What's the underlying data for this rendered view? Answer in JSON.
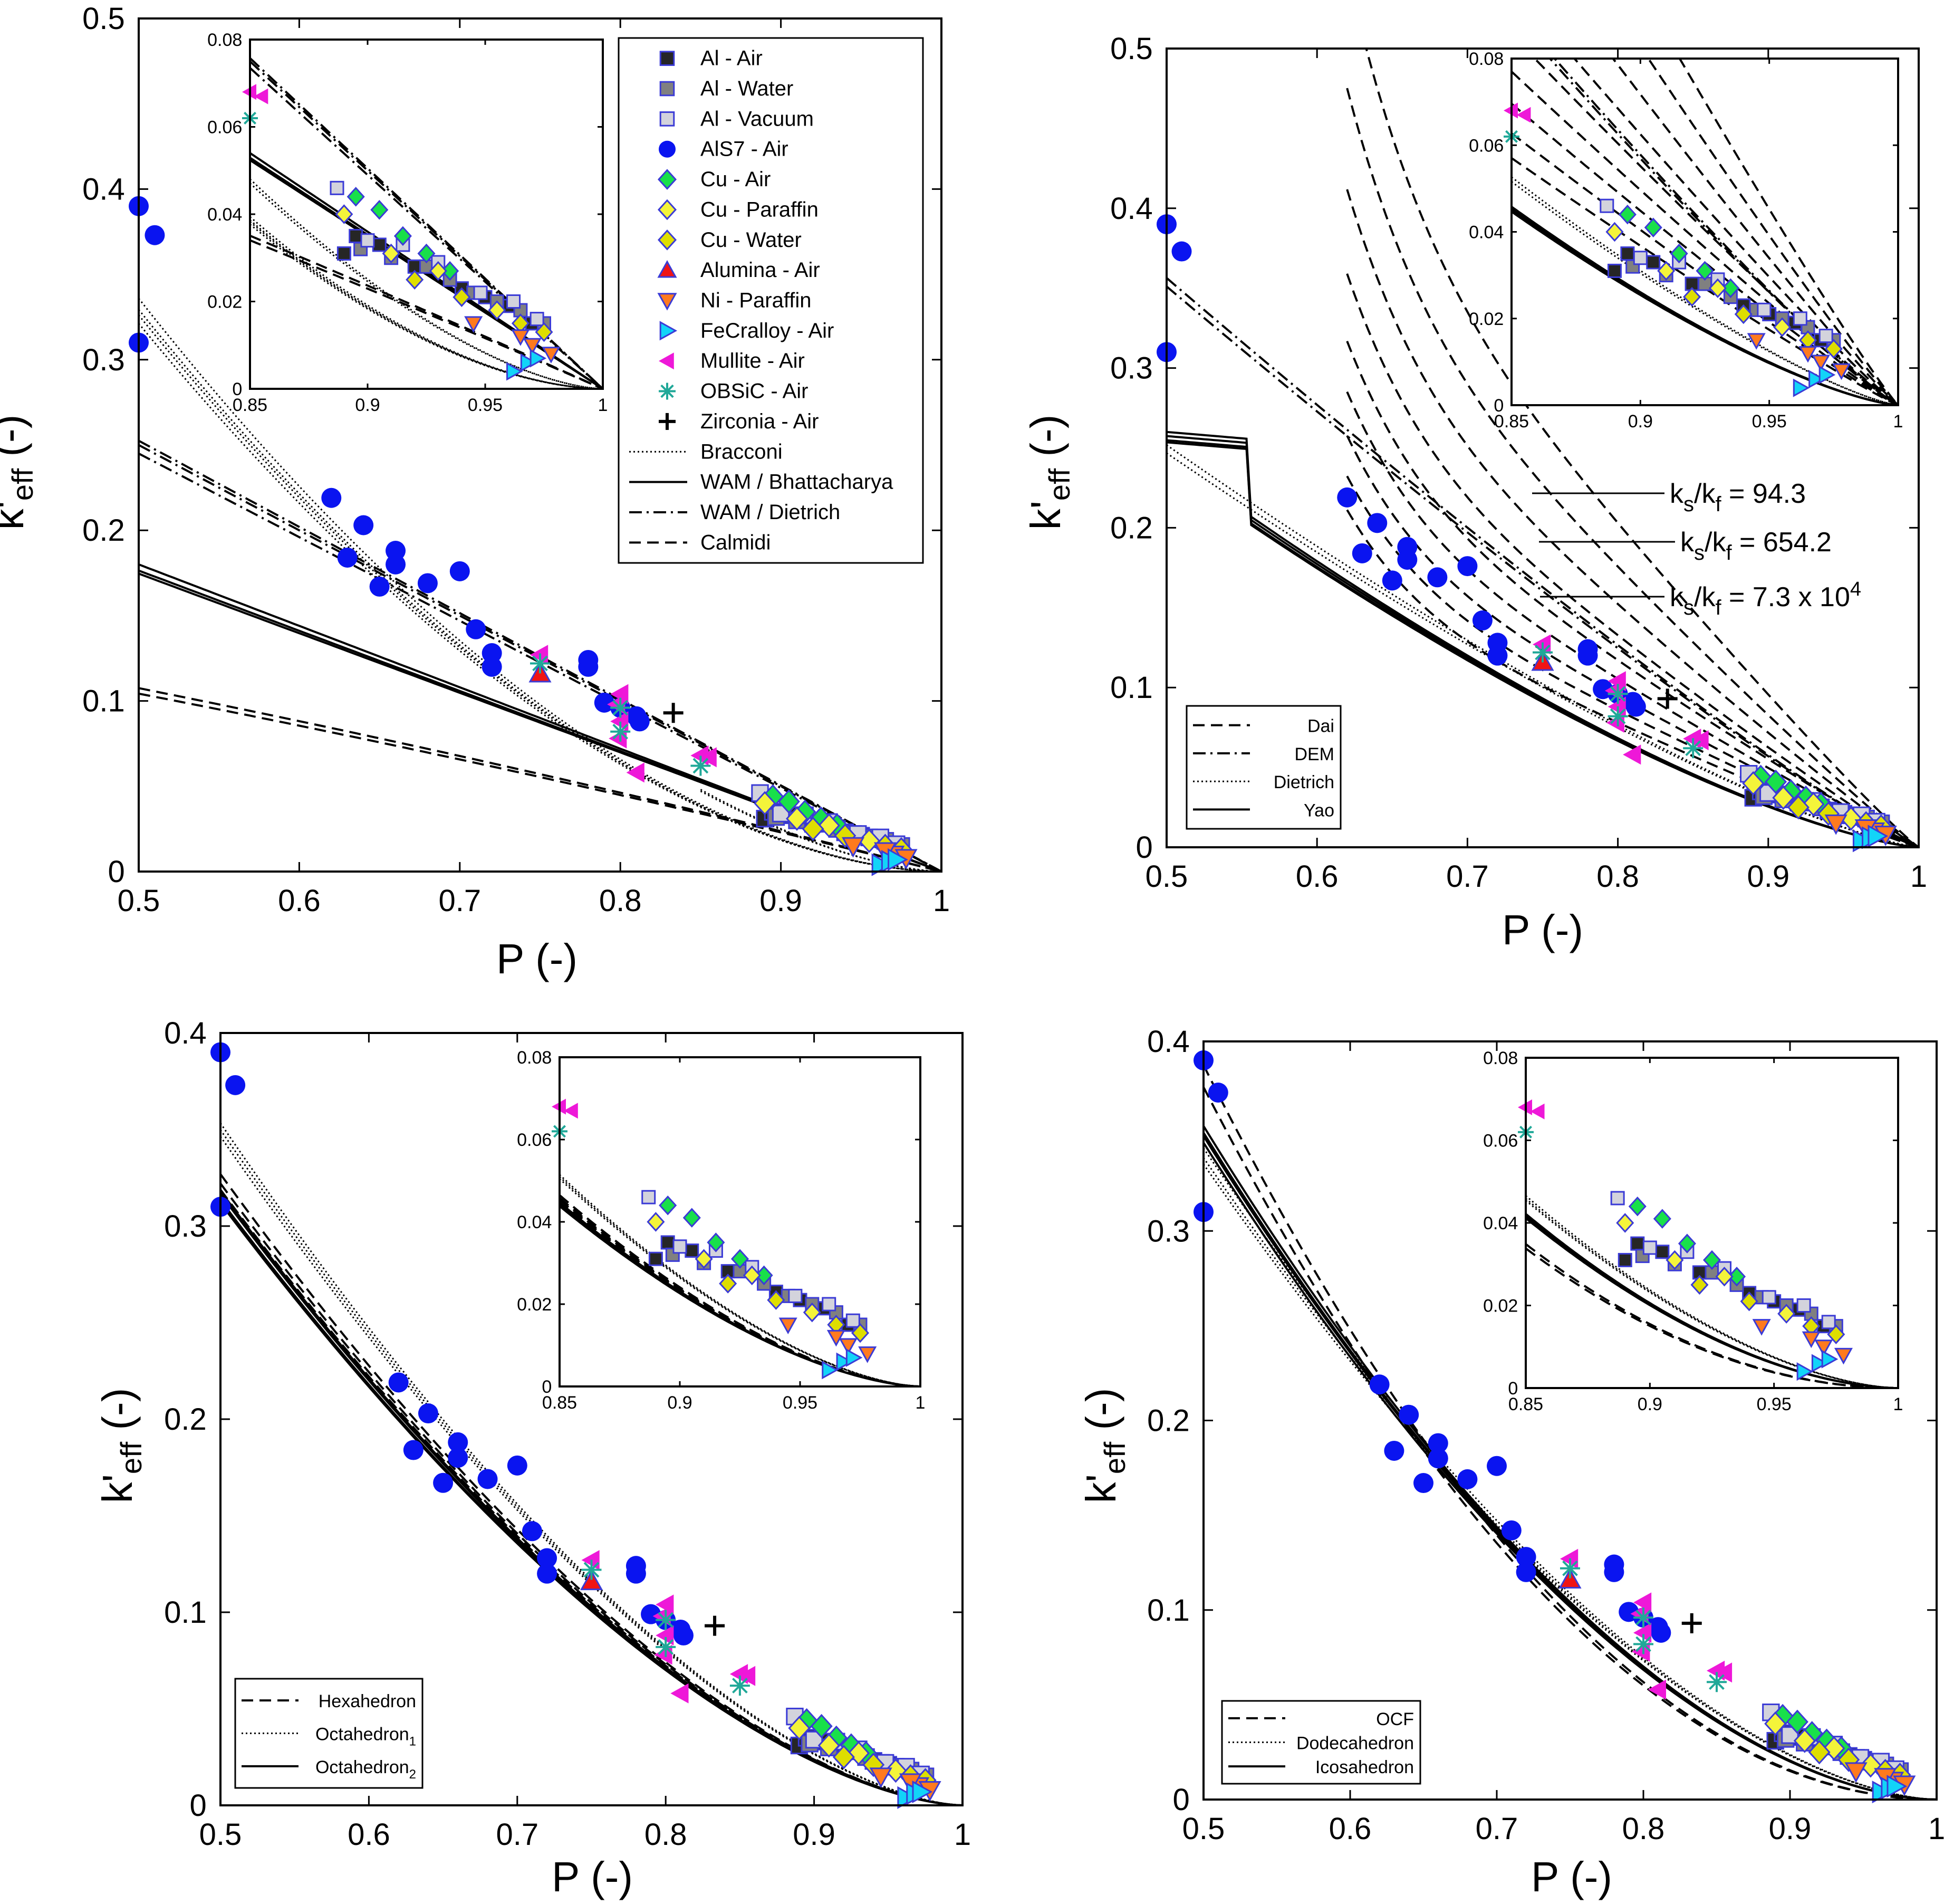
{
  "figure": {
    "x_label": "P (-)",
    "y_label_main": "k'",
    "y_label_sub": "eff",
    "y_label_unit": "(-)"
  },
  "colors": {
    "al_air": "#262626",
    "al_water": "#808080",
    "al_vacuum": "#d3d3dc",
    "als7": "#0a14f0",
    "cu_air": "#18e04a",
    "cu_paraffin": "#f4f43a",
    "cu_water": "#dede00",
    "alumina": "#f01414",
    "ni_paraffin": "#ff7a1e",
    "fecralloy": "#12d4f8",
    "mullite": "#ee18d8",
    "obsic": "#20a898",
    "zirconia": "#000000",
    "edge": "#3b3bd6"
  },
  "chart_data": [
    {
      "id": "A",
      "type": "scatter",
      "xlim": [
        0.5,
        1
      ],
      "ylim": [
        0,
        0.5
      ],
      "xticks": [
        "0.5",
        "0.6",
        "0.7",
        "0.8",
        "0.9",
        "1"
      ],
      "yticks": [
        "0",
        "0.1",
        "0.2",
        "0.3",
        "0.4",
        "0.5"
      ],
      "inset": {
        "xlim": [
          0.85,
          1
        ],
        "ylim": [
          0,
          0.08
        ],
        "xticks": [
          "0.85",
          "0.9",
          "0.95",
          "1"
        ],
        "yticks": [
          "0",
          "0.02",
          "0.04",
          "0.06",
          "0.08"
        ]
      },
      "legend": [
        {
          "label": "Al - Air",
          "marker": "square",
          "color": "al_air"
        },
        {
          "label": "Al - Water",
          "marker": "square",
          "color": "al_water"
        },
        {
          "label": "Al - Vacuum",
          "marker": "square",
          "color": "al_vacuum"
        },
        {
          "label": "AlS7 - Air",
          "marker": "circle",
          "color": "als7"
        },
        {
          "label": "Cu - Air",
          "marker": "diamond",
          "color": "cu_air"
        },
        {
          "label": "Cu - Paraffin",
          "marker": "diamond",
          "color": "cu_paraffin"
        },
        {
          "label": "Cu - Water",
          "marker": "diamond",
          "color": "cu_water"
        },
        {
          "label": "Alumina - Air",
          "marker": "tri-up",
          "color": "alumina"
        },
        {
          "label": "Ni - Paraffin",
          "marker": "tri-down",
          "color": "ni_paraffin"
        },
        {
          "label": "FeCralloy - Air",
          "marker": "tri-right",
          "color": "fecralloy"
        },
        {
          "label": "Mullite - Air",
          "marker": "tri-left",
          "color": "mullite"
        },
        {
          "label": "OBSiC - Air",
          "marker": "star",
          "color": "obsic"
        },
        {
          "label": "Zirconia - Air",
          "marker": "plus",
          "color": "zirconia"
        },
        {
          "label": "Bracconi",
          "line": "dotted"
        },
        {
          "label": "WAM / Bhattacharya",
          "line": "solid"
        },
        {
          "label": "WAM / Dietrich",
          "line": "dashdot"
        },
        {
          "label": "Calmidi",
          "line": "dashed"
        }
      ]
    },
    {
      "id": "B",
      "type": "scatter",
      "xlim": [
        0.5,
        1
      ],
      "ylim": [
        0,
        0.5
      ],
      "xticks": [
        "0.5",
        "0.6",
        "0.7",
        "0.8",
        "0.9",
        "1"
      ],
      "yticks": [
        "0",
        "0.1",
        "0.2",
        "0.3",
        "0.4",
        "0.5"
      ],
      "inset": {
        "xlim": [
          0.85,
          1
        ],
        "ylim": [
          0,
          0.08
        ],
        "xticks": [
          "0.85",
          "0.9",
          "0.95",
          "1"
        ],
        "yticks": [
          "0",
          "0.02",
          "0.04",
          "0.06",
          "0.08"
        ]
      },
      "legend": [
        {
          "label": "Dai",
          "line": "dashed"
        },
        {
          "label": "DEM",
          "line": "dashdot"
        },
        {
          "label": "Dietrich",
          "line": "dotted"
        },
        {
          "label": "Yao",
          "line": "solid"
        }
      ],
      "annotations": [
        {
          "text": "k",
          "sub1": "s",
          "mid": "/k",
          "sub2": "f",
          "rest": " = 94.3"
        },
        {
          "text": "k",
          "sub1": "s",
          "mid": "/k",
          "sub2": "f",
          "rest": " = 654.2"
        },
        {
          "text": "k",
          "sub1": "s",
          "mid": "/k",
          "sub2": "f",
          "rest": " = 7.3 x 10",
          "sup": "4"
        }
      ]
    },
    {
      "id": "C",
      "type": "scatter",
      "xlim": [
        0.5,
        1
      ],
      "ylim": [
        0,
        0.4
      ],
      "xticks": [
        "0.5",
        "0.6",
        "0.7",
        "0.8",
        "0.9",
        "1"
      ],
      "yticks": [
        "0",
        "0.1",
        "0.2",
        "0.3",
        "0.4"
      ],
      "inset": {
        "xlim": [
          0.85,
          1
        ],
        "ylim": [
          0,
          0.08
        ],
        "xticks": [
          "0.85",
          "0.9",
          "0.95",
          "1"
        ],
        "yticks": [
          "0",
          "0.02",
          "0.04",
          "0.06",
          "0.08"
        ]
      },
      "legend": [
        {
          "label": "Hexahedron",
          "line": "dashed"
        },
        {
          "label": "Octahedron",
          "sub": "1",
          "line": "dotted"
        },
        {
          "label": "Octahedron",
          "sub": "2",
          "line": "solid"
        }
      ]
    },
    {
      "id": "D",
      "type": "scatter",
      "xlim": [
        0.5,
        1
      ],
      "ylim": [
        0,
        0.4
      ],
      "xticks": [
        "0.5",
        "0.6",
        "0.7",
        "0.8",
        "0.9",
        "1"
      ],
      "yticks": [
        "0",
        "0.1",
        "0.2",
        "0.3",
        "0.4"
      ],
      "inset": {
        "xlim": [
          0.85,
          1
        ],
        "ylim": [
          0,
          0.08
        ],
        "xticks": [
          "0.85",
          "0.9",
          "0.95",
          "1"
        ],
        "yticks": [
          "0",
          "0.02",
          "0.04",
          "0.06",
          "0.08"
        ]
      },
      "legend": [
        {
          "label": "OCF",
          "line": "dashed"
        },
        {
          "label": "Dodecahedron",
          "line": "dotted"
        },
        {
          "label": "Icosahedron",
          "line": "solid"
        }
      ]
    }
  ],
  "datasets": [
    {
      "key": "al_air",
      "marker": "square",
      "points": [
        [
          0.89,
          0.031
        ],
        [
          0.905,
          0.033
        ],
        [
          0.92,
          0.028
        ],
        [
          0.94,
          0.023
        ],
        [
          0.95,
          0.021
        ],
        [
          0.96,
          0.019
        ],
        [
          0.97,
          0.015
        ],
        [
          0.895,
          0.035
        ]
      ]
    },
    {
      "key": "al_water",
      "marker": "square",
      "points": [
        [
          0.897,
          0.032
        ],
        [
          0.91,
          0.03
        ],
        [
          0.925,
          0.028
        ],
        [
          0.935,
          0.025
        ],
        [
          0.945,
          0.022
        ],
        [
          0.955,
          0.02
        ],
        [
          0.965,
          0.018
        ],
        [
          0.975,
          0.015
        ]
      ]
    },
    {
      "key": "al_vacuum",
      "marker": "square",
      "points": [
        [
          0.887,
          0.046
        ],
        [
          0.9,
          0.034
        ],
        [
          0.915,
          0.033
        ],
        [
          0.93,
          0.029
        ],
        [
          0.948,
          0.022
        ],
        [
          0.962,
          0.02
        ],
        [
          0.972,
          0.016
        ]
      ]
    },
    {
      "key": "als7",
      "marker": "circle",
      "points": [
        [
          0.5,
          0.39
        ],
        [
          0.51,
          0.373
        ],
        [
          0.5,
          0.31
        ],
        [
          0.62,
          0.219
        ],
        [
          0.64,
          0.203
        ],
        [
          0.66,
          0.188
        ],
        [
          0.66,
          0.18
        ],
        [
          0.63,
          0.184
        ],
        [
          0.65,
          0.167
        ],
        [
          0.68,
          0.169
        ],
        [
          0.7,
          0.176
        ],
        [
          0.71,
          0.142
        ],
        [
          0.72,
          0.128
        ],
        [
          0.72,
          0.12
        ],
        [
          0.78,
          0.124
        ],
        [
          0.78,
          0.12
        ],
        [
          0.79,
          0.099
        ],
        [
          0.8,
          0.096
        ],
        [
          0.81,
          0.091
        ],
        [
          0.812,
          0.088
        ]
      ]
    },
    {
      "key": "cu_air",
      "marker": "diamond",
      "points": [
        [
          0.895,
          0.044
        ],
        [
          0.905,
          0.041
        ],
        [
          0.915,
          0.035
        ],
        [
          0.925,
          0.031
        ],
        [
          0.935,
          0.027
        ]
      ]
    },
    {
      "key": "cu_paraffin",
      "marker": "diamond",
      "points": [
        [
          0.89,
          0.04
        ],
        [
          0.91,
          0.031
        ],
        [
          0.93,
          0.027
        ],
        [
          0.955,
          0.018
        ]
      ]
    },
    {
      "key": "cu_water",
      "marker": "diamond",
      "points": [
        [
          0.92,
          0.025
        ],
        [
          0.94,
          0.021
        ],
        [
          0.965,
          0.015
        ],
        [
          0.975,
          0.013
        ]
      ]
    },
    {
      "key": "alumina",
      "marker": "tri-up",
      "points": [
        [
          0.75,
          0.116
        ]
      ]
    },
    {
      "key": "ni_paraffin",
      "marker": "tri-down",
      "points": [
        [
          0.945,
          0.015
        ],
        [
          0.97,
          0.01
        ],
        [
          0.978,
          0.008
        ],
        [
          0.965,
          0.012
        ]
      ]
    },
    {
      "key": "fecralloy",
      "marker": "tri-right",
      "points": [
        [
          0.962,
          0.004
        ],
        [
          0.968,
          0.006
        ],
        [
          0.972,
          0.007
        ]
      ]
    },
    {
      "key": "mullite",
      "marker": "tri-left",
      "points": [
        [
          0.75,
          0.127
        ],
        [
          0.8,
          0.104
        ],
        [
          0.798,
          0.098
        ],
        [
          0.8,
          0.088
        ],
        [
          0.799,
          0.078
        ],
        [
          0.81,
          0.058
        ],
        [
          0.85,
          0.068
        ],
        [
          0.855,
          0.067
        ]
      ]
    },
    {
      "key": "obsic",
      "marker": "star",
      "points": [
        [
          0.75,
          0.122
        ],
        [
          0.8,
          0.096
        ],
        [
          0.8,
          0.082
        ],
        [
          0.85,
          0.062
        ]
      ]
    },
    {
      "key": "zirconia",
      "marker": "plus",
      "points": [
        [
          0.833,
          0.093
        ]
      ]
    }
  ]
}
